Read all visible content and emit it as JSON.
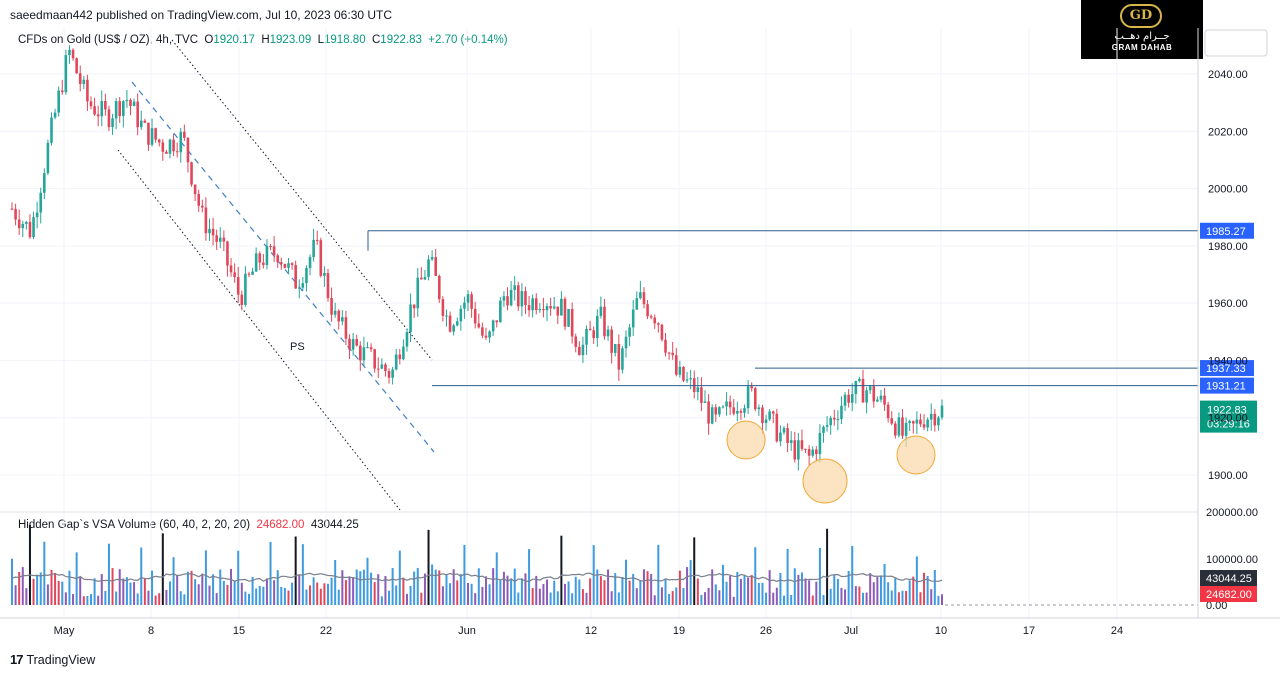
{
  "publisher": "saeedmaan442 published on TradingView.com, Jul 10, 2023 06:30 UTC",
  "symbol": {
    "name": "CFDs on Gold (US$ / OZ), 4h, TVC",
    "o_label": "O",
    "open": "1920.17",
    "h_label": "H",
    "high": "1923.09",
    "l_label": "L",
    "low": "1918.80",
    "c_label": "C",
    "close": "1922.83",
    "change": "+2.70 (+0.14%)"
  },
  "indicator": {
    "name": "Hidden Gap`s VSA Volume (60, 40, 2, 20, 20)",
    "value1": "24682.00",
    "value2": "43044.25"
  },
  "logo": {
    "arabic": "جــرام دهــب",
    "english": "GRAM DAHAB",
    "mark": "GD"
  },
  "brand": {
    "glyph": "17",
    "name": "TradingView"
  },
  "colors": {
    "up": "#26a69a",
    "down": "#e0475a",
    "line": "#2a5e8c",
    "label_blue": "#2962ff",
    "highlight": "#fbd9a8",
    "current": "#089981",
    "vol_blue": "#3d9be0",
    "vol_purple": "#8c5bb8"
  },
  "chart_data": {
    "type": "candlestick",
    "price_axis": {
      "min": 1890,
      "max": 2050,
      "ticks": [
        "2040.00",
        "2020.00",
        "2000.00",
        "1980.00",
        "1960.00",
        "1940.00",
        "1920.00",
        "1900.00"
      ]
    },
    "time_axis": {
      "ticks": [
        "May",
        "8",
        "15",
        "22",
        "Jun",
        "12",
        "19",
        "26",
        "Jul",
        "10",
        "17",
        "24"
      ]
    },
    "levels": [
      {
        "label": "1985.27",
        "value": 1985.27
      },
      {
        "label": "1937.33",
        "value": 1937.33
      },
      {
        "label": "1931.21",
        "value": 1931.21
      }
    ],
    "current_price": {
      "label": "1922.83",
      "countdown": "03:29:16"
    },
    "annotation": "PS",
    "path_points": [
      [
        "May 1",
        1993
      ],
      [
        "May 2",
        1985
      ],
      [
        "May 3",
        2018
      ],
      [
        "May 4",
        2048
      ],
      [
        "May 5",
        2030
      ],
      [
        "May 8",
        2025
      ],
      [
        "May 10",
        2032
      ],
      [
        "May 11",
        2020
      ],
      [
        "May 12",
        2015
      ],
      [
        "May 15",
        2018
      ],
      [
        "May 16",
        1990
      ],
      [
        "May 17",
        1980
      ],
      [
        "May 18",
        1962
      ],
      [
        "May 19",
        1975
      ],
      [
        "May 22",
        1978
      ],
      [
        "May 23",
        1967
      ],
      [
        "May 24",
        1980
      ],
      [
        "May 25",
        1955
      ],
      [
        "May 26",
        1945
      ],
      [
        "May 29",
        1940
      ],
      [
        "May 30",
        1935
      ],
      [
        "May 31",
        1958
      ],
      [
        "Jun 1",
        1975
      ],
      [
        "Jun 2",
        1953
      ],
      [
        "Jun 5",
        1962
      ],
      [
        "Jun 6",
        1945
      ],
      [
        "Jun 7",
        1964
      ],
      [
        "Jun 8",
        1960
      ],
      [
        "Jun 9",
        1962
      ],
      [
        "Jun 12",
        1958
      ],
      [
        "Jun 13",
        1944
      ],
      [
        "Jun 14",
        1955
      ],
      [
        "Jun 15",
        1938
      ],
      [
        "Jun 16",
        1962
      ],
      [
        "Jun 19",
        1955
      ],
      [
        "Jun 20",
        1935
      ],
      [
        "Jun 21",
        1930
      ],
      [
        "Jun 22",
        1918
      ],
      [
        "Jun 23",
        1925
      ],
      [
        "Jun 26",
        1928
      ],
      [
        "Jun 27",
        1918
      ],
      [
        "Jun 28",
        1910
      ],
      [
        "Jun 29",
        1906
      ],
      [
        "Jun 30",
        1918
      ],
      [
        "Jul 3",
        1928
      ],
      [
        "Jul 4",
        1930
      ],
      [
        "Jul 5",
        1924
      ],
      [
        "Jul 6",
        1913
      ],
      [
        "Jul 7",
        1920
      ],
      [
        "Jul 10",
        1922.83
      ]
    ],
    "volume_axis": {
      "ticks": [
        "200000.00",
        "100000.00",
        "0.00"
      ],
      "markers": [
        "43044.25",
        "24682.00"
      ]
    }
  }
}
